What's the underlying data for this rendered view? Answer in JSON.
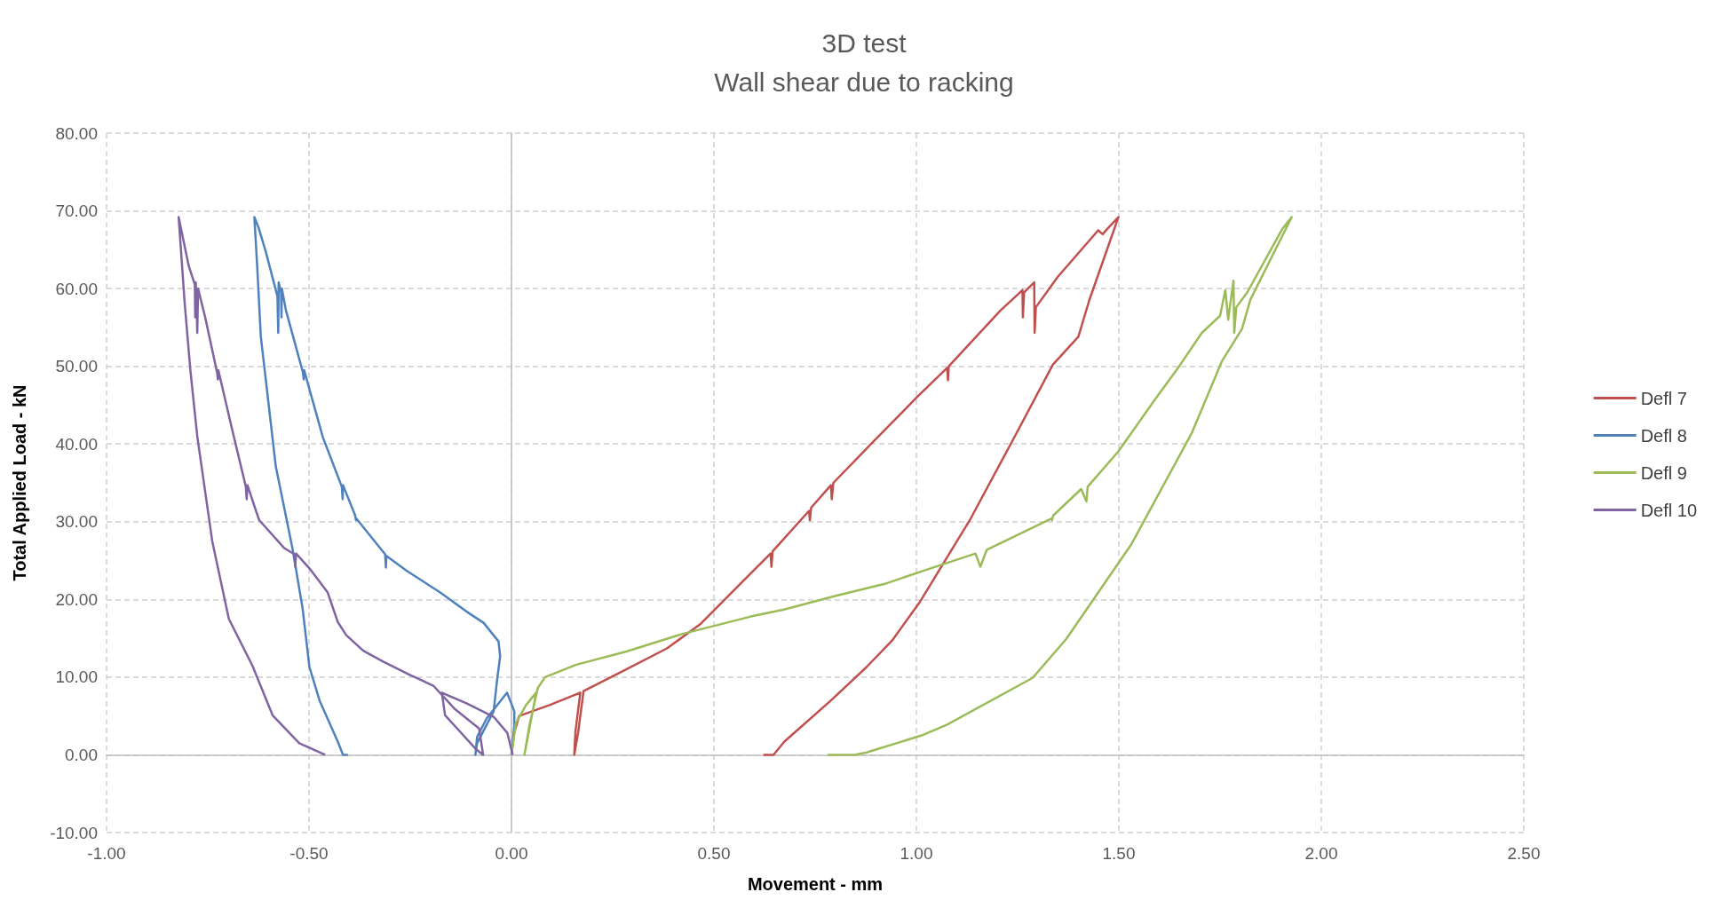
{
  "chart_data": {
    "type": "line",
    "title": "3D test",
    "subtitle": "Wall shear due to racking",
    "xlabel": "Movement - mm",
    "ylabel": "Total Applied Load - kN",
    "xlim": [
      -1,
      2.5
    ],
    "xticks": [
      {
        "value": -1,
        "label": "-1.00"
      },
      {
        "value": -0.5,
        "label": "-0.50"
      },
      {
        "value": 0,
        "label": "0.00"
      },
      {
        "value": 0.5,
        "label": "0.50"
      },
      {
        "value": 1,
        "label": "1.00"
      },
      {
        "value": 1.5,
        "label": "1.50"
      },
      {
        "value": 2,
        "label": "2.00"
      },
      {
        "value": 2.5,
        "label": "2.50"
      }
    ],
    "ylim": [
      -10,
      80
    ],
    "yticks": [
      {
        "value": -10,
        "label": "-10.00"
      },
      {
        "value": 0,
        "label": "0.00"
      },
      {
        "value": 10,
        "label": "10.00"
      },
      {
        "value": 20,
        "label": "20.00"
      },
      {
        "value": 30,
        "label": "30.00"
      },
      {
        "value": 40,
        "label": "40.00"
      },
      {
        "value": 50,
        "label": "50.00"
      },
      {
        "value": 60,
        "label": "60.00"
      },
      {
        "value": 70,
        "label": "70.00"
      },
      {
        "value": 80,
        "label": "80.00"
      }
    ],
    "grid": true,
    "legend": "right",
    "marker": "none",
    "series": [
      {
        "name": "Defl 7",
        "color": "#c0504d",
        "x": [
          0,
          0.006,
          0.019,
          0.094,
          0.17,
          0.158,
          0.155,
          0.165,
          0.178,
          0.276,
          0.384,
          0.466,
          0.59,
          0.64,
          0.642,
          0.645,
          0.735,
          0.737,
          0.74,
          0.789,
          0.791,
          0.795,
          0.888,
          1.001,
          1.076,
          1.078,
          1.08,
          1.208,
          1.262,
          1.263,
          1.266,
          1.291,
          1.292,
          1.295,
          1.349,
          1.449,
          1.46,
          1.47,
          1.499,
          1.427,
          1.4,
          1.337,
          1.233,
          1.134,
          1.009,
          0.94,
          0.877,
          0.789,
          0.674,
          0.647,
          0.622
        ],
        "values": [
          0,
          2.7,
          5,
          6.4,
          8,
          3,
          0,
          3,
          8.2,
          10.8,
          13.7,
          16.8,
          23.3,
          25.9,
          24.2,
          26.2,
          31.4,
          30.2,
          31.8,
          34.7,
          32.9,
          35,
          40,
          46,
          49.8,
          48.2,
          50,
          57.2,
          59.8,
          56.3,
          59.5,
          60.8,
          54.3,
          57.6,
          61.5,
          67.5,
          67,
          67.6,
          69.2,
          58.5,
          53.8,
          50.2,
          40,
          30.4,
          19.7,
          14.7,
          11.3,
          7,
          1.7,
          0,
          0
        ]
      },
      {
        "name": "Defl 8",
        "color": "#4f81bd",
        "x": [
          0,
          0.007,
          0.007,
          -0.011,
          -0.061,
          -0.085,
          -0.089,
          -0.085,
          -0.044,
          -0.036,
          -0.028,
          -0.032,
          -0.069,
          -0.11,
          -0.176,
          -0.259,
          -0.309,
          -0.31,
          -0.312,
          -0.383,
          -0.384,
          -0.386,
          -0.416,
          -0.417,
          -0.419,
          -0.466,
          -0.512,
          -0.513,
          -0.515,
          -0.557,
          -0.567,
          -0.568,
          -0.569,
          -0.575,
          -0.576,
          -0.578,
          -0.607,
          -0.625,
          -0.635,
          -0.628,
          -0.619,
          -0.582,
          -0.541,
          -0.516,
          -0.499,
          -0.474,
          -0.429,
          -0.416,
          -0.404
        ],
        "values": [
          0,
          3.7,
          5.6,
          8,
          4.7,
          2.3,
          0,
          1.5,
          5.6,
          9.4,
          12.7,
          14.6,
          17,
          18.4,
          20.9,
          23.7,
          25.6,
          24.1,
          25.8,
          30.4,
          30.2,
          30.8,
          34.7,
          32.9,
          34.5,
          40.9,
          49.5,
          48.3,
          49.2,
          57.2,
          60,
          56.3,
          59.5,
          60.8,
          54.3,
          59,
          64.8,
          67.9,
          69.2,
          62.9,
          53.8,
          37.1,
          26.6,
          18.9,
          11.3,
          7,
          1.7,
          0,
          0
        ]
      },
      {
        "name": "Defl 9",
        "color": "#9bbb59",
        "x": [
          0,
          0.011,
          0.036,
          0.061,
          0.052,
          0.032,
          0.044,
          0.065,
          0.083,
          0.16,
          0.284,
          0.425,
          0.516,
          0.591,
          0.673,
          0.797,
          0.922,
          1.035,
          1.146,
          1.158,
          1.174,
          1.333,
          1.335,
          1.338,
          1.407,
          1.42,
          1.423,
          1.498,
          1.589,
          1.649,
          1.705,
          1.75,
          1.763,
          1.77,
          1.783,
          1.785,
          1.79,
          1.817,
          1.904,
          1.927,
          1.825,
          1.804,
          1.754,
          1.68,
          1.531,
          1.37,
          1.287,
          1.076,
          1.013,
          0.877,
          0.847,
          0.781
        ],
        "values": [
          0,
          4.1,
          6.4,
          8,
          5.5,
          0,
          3.7,
          8.6,
          10,
          11.6,
          13.3,
          15.6,
          16.8,
          17.8,
          18.7,
          20.4,
          22,
          24,
          25.9,
          24.2,
          26.4,
          30.4,
          30.2,
          30.8,
          34.2,
          32.6,
          34.5,
          39,
          45.7,
          50,
          54.3,
          56.5,
          59.8,
          56,
          61,
          54.3,
          57.6,
          59.5,
          67.7,
          69.2,
          58.6,
          54.8,
          50.6,
          41.4,
          27.1,
          14.9,
          9.9,
          3.9,
          2.5,
          0.3,
          0,
          0
        ]
      },
      {
        "name": "Defl 10",
        "color": "#8064a2",
        "x": [
          0.003,
          -0.01,
          -0.044,
          -0.11,
          -0.172,
          -0.164,
          -0.089,
          -0.07,
          -0.08,
          -0.14,
          -0.193,
          -0.251,
          -0.317,
          -0.366,
          -0.408,
          -0.429,
          -0.454,
          -0.474,
          -0.499,
          -0.532,
          -0.534,
          -0.536,
          -0.561,
          -0.623,
          -0.631,
          -0.652,
          -0.654,
          -0.656,
          -0.69,
          -0.724,
          -0.725,
          -0.727,
          -0.756,
          -0.774,
          -0.776,
          -0.778,
          -0.78,
          -0.781,
          -0.782,
          -0.797,
          -0.822,
          -0.807,
          -0.793,
          -0.776,
          -0.739,
          -0.698,
          -0.64,
          -0.59,
          -0.524,
          -0.46
        ],
        "values": [
          0,
          2.8,
          4.9,
          6.6,
          8,
          5.1,
          0.8,
          0,
          3.4,
          5.9,
          8.9,
          10.3,
          12,
          13.4,
          15.4,
          17.1,
          20.9,
          22.3,
          24,
          25.9,
          24.2,
          25.8,
          26.6,
          30.2,
          31.4,
          34.7,
          32.9,
          34.5,
          41.9,
          49.5,
          48.3,
          49.2,
          56.2,
          60,
          54.3,
          59,
          60.8,
          56.3,
          60.5,
          62.9,
          69.2,
          58.1,
          49.5,
          41,
          27.5,
          17.5,
          11.5,
          5.1,
          1.5,
          0
        ]
      }
    ]
  }
}
